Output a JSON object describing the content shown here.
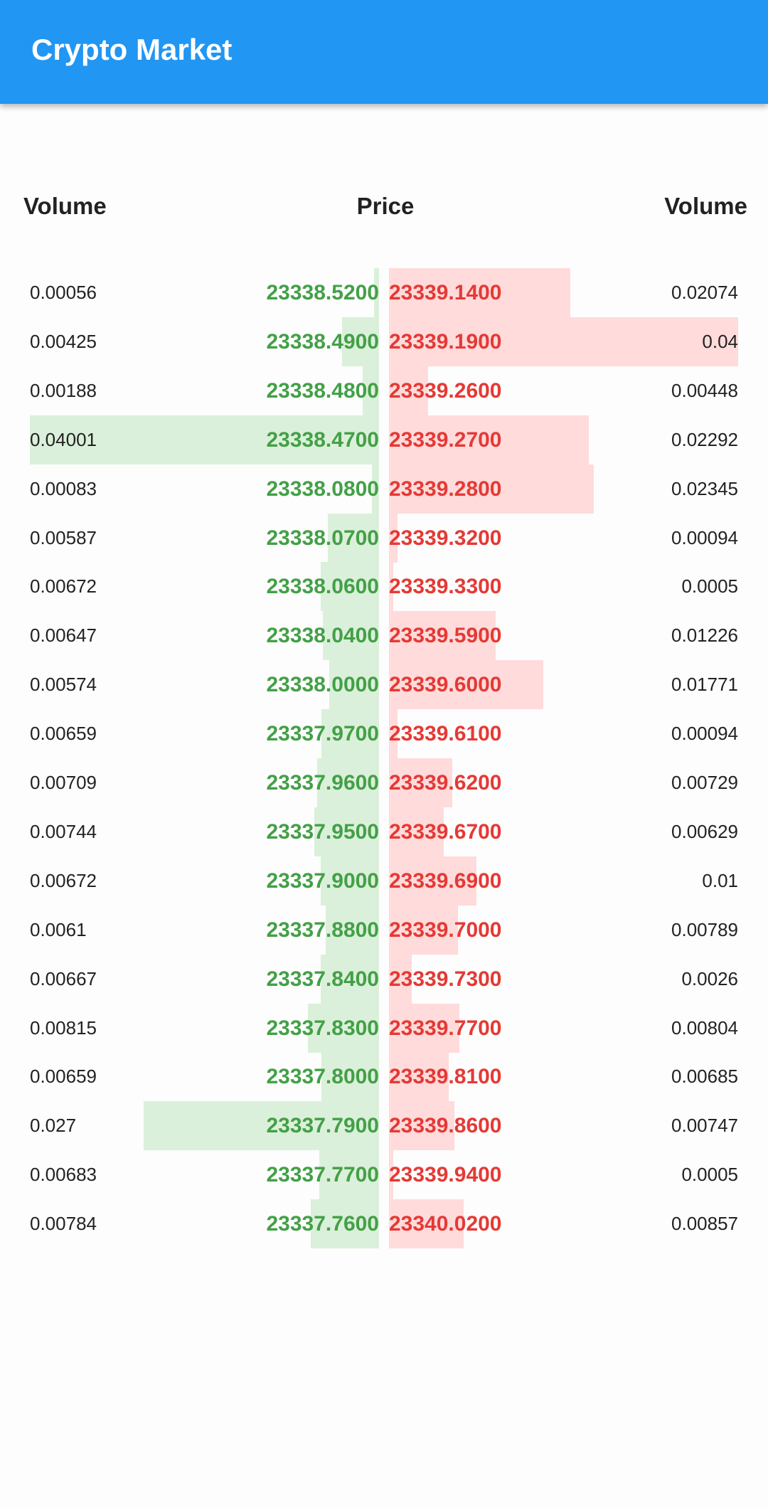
{
  "appbar": {
    "title": "Crypto Market"
  },
  "header": {
    "bid_volume_label": "Volume",
    "price_label": "Price",
    "ask_volume_label": "Volume"
  },
  "colors": {
    "appbar": "#2196f3",
    "bid_text": "#43a047",
    "ask_text": "#e53935",
    "bid_bar": "#dbf0da",
    "ask_bar": "#ffdbdb"
  },
  "order_book": {
    "max_volume": 0.04001,
    "rows": [
      {
        "bid_volume": "0.00056",
        "bid_price": "23338.5200",
        "ask_price": "23339.1400",
        "ask_volume": "0.02074"
      },
      {
        "bid_volume": "0.00425",
        "bid_price": "23338.4900",
        "ask_price": "23339.1900",
        "ask_volume": "0.04"
      },
      {
        "bid_volume": "0.00188",
        "bid_price": "23338.4800",
        "ask_price": "23339.2600",
        "ask_volume": "0.00448"
      },
      {
        "bid_volume": "0.04001",
        "bid_price": "23338.4700",
        "ask_price": "23339.2700",
        "ask_volume": "0.02292"
      },
      {
        "bid_volume": "0.00083",
        "bid_price": "23338.0800",
        "ask_price": "23339.2800",
        "ask_volume": "0.02345"
      },
      {
        "bid_volume": "0.00587",
        "bid_price": "23338.0700",
        "ask_price": "23339.3200",
        "ask_volume": "0.00094"
      },
      {
        "bid_volume": "0.00672",
        "bid_price": "23338.0600",
        "ask_price": "23339.3300",
        "ask_volume": "0.0005"
      },
      {
        "bid_volume": "0.00647",
        "bid_price": "23338.0400",
        "ask_price": "23339.5900",
        "ask_volume": "0.01226"
      },
      {
        "bid_volume": "0.00574",
        "bid_price": "23338.0000",
        "ask_price": "23339.6000",
        "ask_volume": "0.01771"
      },
      {
        "bid_volume": "0.00659",
        "bid_price": "23337.9700",
        "ask_price": "23339.6100",
        "ask_volume": "0.00094"
      },
      {
        "bid_volume": "0.00709",
        "bid_price": "23337.9600",
        "ask_price": "23339.6200",
        "ask_volume": "0.00729"
      },
      {
        "bid_volume": "0.00744",
        "bid_price": "23337.9500",
        "ask_price": "23339.6700",
        "ask_volume": "0.00629"
      },
      {
        "bid_volume": "0.00672",
        "bid_price": "23337.9000",
        "ask_price": "23339.6900",
        "ask_volume": "0.01"
      },
      {
        "bid_volume": "0.0061",
        "bid_price": "23337.8800",
        "ask_price": "23339.7000",
        "ask_volume": "0.00789"
      },
      {
        "bid_volume": "0.00667",
        "bid_price": "23337.8400",
        "ask_price": "23339.7300",
        "ask_volume": "0.0026"
      },
      {
        "bid_volume": "0.00815",
        "bid_price": "23337.8300",
        "ask_price": "23339.7700",
        "ask_volume": "0.00804"
      },
      {
        "bid_volume": "0.00659",
        "bid_price": "23337.8000",
        "ask_price": "23339.8100",
        "ask_volume": "0.00685"
      },
      {
        "bid_volume": "0.027",
        "bid_price": "23337.7900",
        "ask_price": "23339.8600",
        "ask_volume": "0.00747"
      },
      {
        "bid_volume": "0.00683",
        "bid_price": "23337.7700",
        "ask_price": "23339.9400",
        "ask_volume": "0.0005"
      },
      {
        "bid_volume": "0.00784",
        "bid_price": "23337.7600",
        "ask_price": "23340.0200",
        "ask_volume": "0.00857"
      }
    ]
  }
}
